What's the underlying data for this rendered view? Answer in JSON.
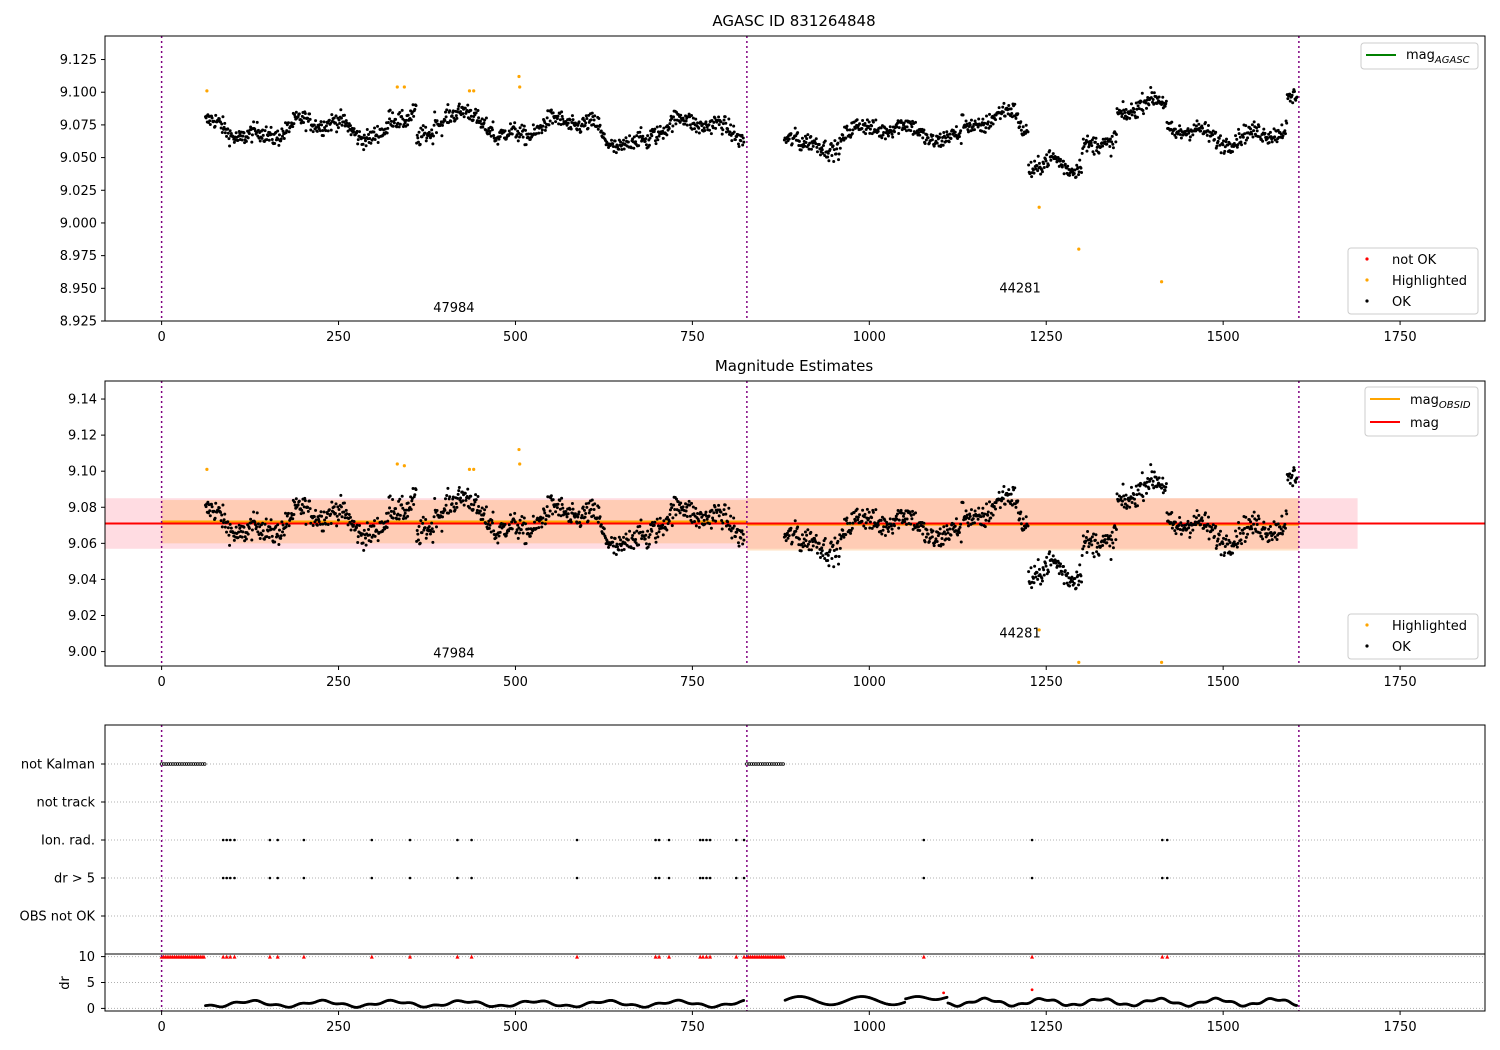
{
  "chart_data": [
    {
      "type": "scatter",
      "title": "AGASC ID 831264848",
      "xlim": [
        -80,
        1870
      ],
      "ylim": [
        8.925,
        9.143
      ],
      "xticks": [
        "0",
        "250",
        "500",
        "750",
        "1000",
        "1250",
        "1500",
        "1750"
      ],
      "yticks": [
        "8.925",
        "8.950",
        "8.975",
        "9.000",
        "9.025",
        "9.050",
        "9.075",
        "9.100",
        "9.125"
      ],
      "obsid_boundaries": [
        0,
        827,
        1607
      ],
      "obsid_labels": [
        {
          "text": "47984",
          "x": 413,
          "y": 8.935
        },
        {
          "text": "44281",
          "x": 1213,
          "y": 8.95
        }
      ],
      "line_legend": [
        {
          "label": "mag",
          "sub": "AGASC",
          "color": "#008000"
        }
      ],
      "legend": [
        {
          "label": "not OK",
          "color": "#ff0000"
        },
        {
          "label": "Highlighted",
          "color": "#ffa500"
        },
        {
          "label": "OK",
          "color": "#000000"
        }
      ],
      "highlighted_points": [
        [
          64,
          9.101
        ],
        [
          333,
          9.104
        ],
        [
          343,
          9.104
        ],
        [
          435,
          9.101
        ],
        [
          441,
          9.101
        ],
        [
          505,
          9.112
        ],
        [
          506,
          9.104
        ],
        [
          1240,
          9.012
        ],
        [
          1296,
          8.98
        ],
        [
          1413,
          8.955
        ]
      ]
    },
    {
      "type": "scatter",
      "title": "Magnitude Estimates",
      "xlim": [
        -80,
        1870
      ],
      "ylim": [
        8.992,
        9.15
      ],
      "xticks": [
        "0",
        "250",
        "500",
        "750",
        "1000",
        "1250",
        "1500",
        "1750"
      ],
      "yticks": [
        "9.00",
        "9.02",
        "9.04",
        "9.06",
        "9.08",
        "9.10",
        "9.12",
        "9.14"
      ],
      "obsid_boundaries": [
        0,
        827,
        1607
      ],
      "obsid_labels": [
        {
          "text": "47984",
          "x": 413,
          "y": 8.999
        },
        {
          "text": "44281",
          "x": 1213,
          "y": 9.01
        }
      ],
      "mag": {
        "value": 9.071,
        "err": 0.014,
        "color": "#ff0000"
      },
      "mag_obsid": [
        {
          "x0": 0,
          "x1": 827,
          "value": 9.072,
          "err": 0.012
        },
        {
          "x0": 827,
          "x1": 1607,
          "value": 9.0705,
          "err": 0.0145
        }
      ],
      "line_legend": [
        {
          "label": "mag",
          "sub": "OBSID",
          "color": "#ffa500"
        },
        {
          "label": "mag",
          "sub": "",
          "color": "#ff0000"
        }
      ],
      "legend": [
        {
          "label": "Highlighted",
          "color": "#ffa500"
        },
        {
          "label": "OK",
          "color": "#000000"
        }
      ],
      "highlighted_points": [
        [
          64,
          9.101
        ],
        [
          333,
          9.104
        ],
        [
          343,
          9.103
        ],
        [
          435,
          9.101
        ],
        [
          441,
          9.101
        ],
        [
          505,
          9.112
        ],
        [
          506,
          9.104
        ],
        [
          1240,
          9.012
        ],
        [
          1296,
          8.994
        ],
        [
          1413,
          8.994
        ]
      ]
    },
    {
      "type": "scatter",
      "title": "",
      "xlim": [
        -80,
        1870
      ],
      "xticks": [
        "0",
        "250",
        "500",
        "750",
        "1000",
        "1250",
        "1500",
        "1750"
      ],
      "obsid_boundaries": [
        0,
        827,
        1607
      ],
      "flag_rows": [
        "not Kalman",
        "not track",
        "Ion. rad.",
        "dr > 5",
        "OBS not OK"
      ],
      "flag_points": {
        "not Kalman": [
          [
            0,
            62
          ],
          [
            827,
            880
          ]
        ],
        "Ion. rad.": [
          87,
          92,
          97,
          103,
          153,
          164,
          201,
          297,
          351,
          418,
          438,
          587,
          698,
          703,
          717,
          761,
          765,
          770,
          775,
          812,
          823,
          1077,
          1230,
          1414,
          1421
        ],
        "dr > 5": [
          87,
          92,
          97,
          103,
          153,
          164,
          201,
          297,
          351,
          418,
          438,
          587,
          698,
          703,
          717,
          761,
          765,
          770,
          775,
          812,
          823,
          1077,
          1230,
          1414,
          1421
        ]
      },
      "dr_ylabel": "dr",
      "dr_yticks": [
        "0",
        "5",
        "10"
      ],
      "dr_ylim": [
        -0.5,
        10.5
      ]
    }
  ]
}
